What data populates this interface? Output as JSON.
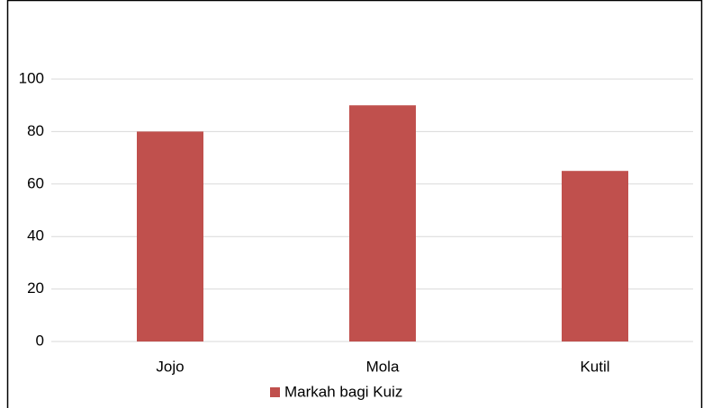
{
  "chart_data": {
    "type": "bar",
    "categories": [
      "Jojo",
      "Mola",
      "Kutil"
    ],
    "series": [
      {
        "name": "Markah bagi Kuiz",
        "color": "#c0504d",
        "values": [
          80,
          90,
          65
        ]
      }
    ],
    "ylim": [
      0,
      120
    ],
    "yticks": [
      0,
      20,
      40,
      60,
      80,
      100
    ],
    "grid": true,
    "legend": "bottom"
  }
}
